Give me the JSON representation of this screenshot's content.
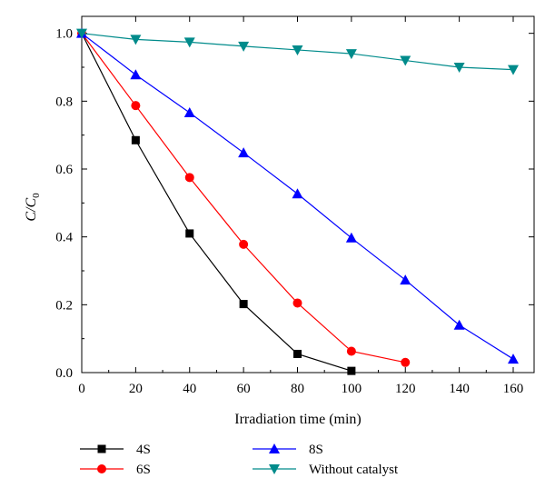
{
  "chart_data": {
    "type": "line",
    "title": "",
    "xlabel": "Irradiation time (min)",
    "ylabel_main": "C/C",
    "ylabel_sub": "0",
    "xlim": [
      0,
      160
    ],
    "ylim": [
      0,
      1.05
    ],
    "x_ticks": [
      0,
      20,
      40,
      60,
      80,
      100,
      120,
      140,
      160
    ],
    "y_ticks": [
      0.0,
      0.2,
      0.4,
      0.6,
      0.8,
      1.0
    ],
    "x_tick_labels": [
      "0",
      "20",
      "40",
      "60",
      "80",
      "100",
      "120",
      "140",
      "160"
    ],
    "y_tick_labels": [
      "0.0",
      "0.2",
      "0.4",
      "0.6",
      "0.8",
      "1.0"
    ],
    "grid": false,
    "legend_position": "bottom",
    "series": [
      {
        "name": "4S",
        "color": "#000000",
        "marker": "square",
        "x": [
          0,
          20,
          40,
          60,
          80,
          100
        ],
        "y": [
          1.0,
          0.685,
          0.41,
          0.202,
          0.055,
          0.005
        ]
      },
      {
        "name": "6S",
        "color": "#ff0000",
        "marker": "circle",
        "x": [
          0,
          20,
          40,
          60,
          80,
          100,
          120
        ],
        "y": [
          1.0,
          0.787,
          0.575,
          0.378,
          0.205,
          0.063,
          0.03
        ]
      },
      {
        "name": "8S",
        "color": "#0000ff",
        "marker": "triangle-up",
        "x": [
          0,
          20,
          40,
          60,
          80,
          100,
          120,
          140,
          160
        ],
        "y": [
          1.0,
          0.878,
          0.766,
          0.648,
          0.527,
          0.397,
          0.273,
          0.14,
          0.04
        ]
      },
      {
        "name": "Without catalyst",
        "color": "#008b8b",
        "marker": "triangle-down",
        "x": [
          0,
          20,
          40,
          60,
          80,
          100,
          120,
          140,
          160
        ],
        "y": [
          1.0,
          0.982,
          0.974,
          0.962,
          0.951,
          0.94,
          0.92,
          0.9,
          0.893
        ]
      }
    ]
  }
}
